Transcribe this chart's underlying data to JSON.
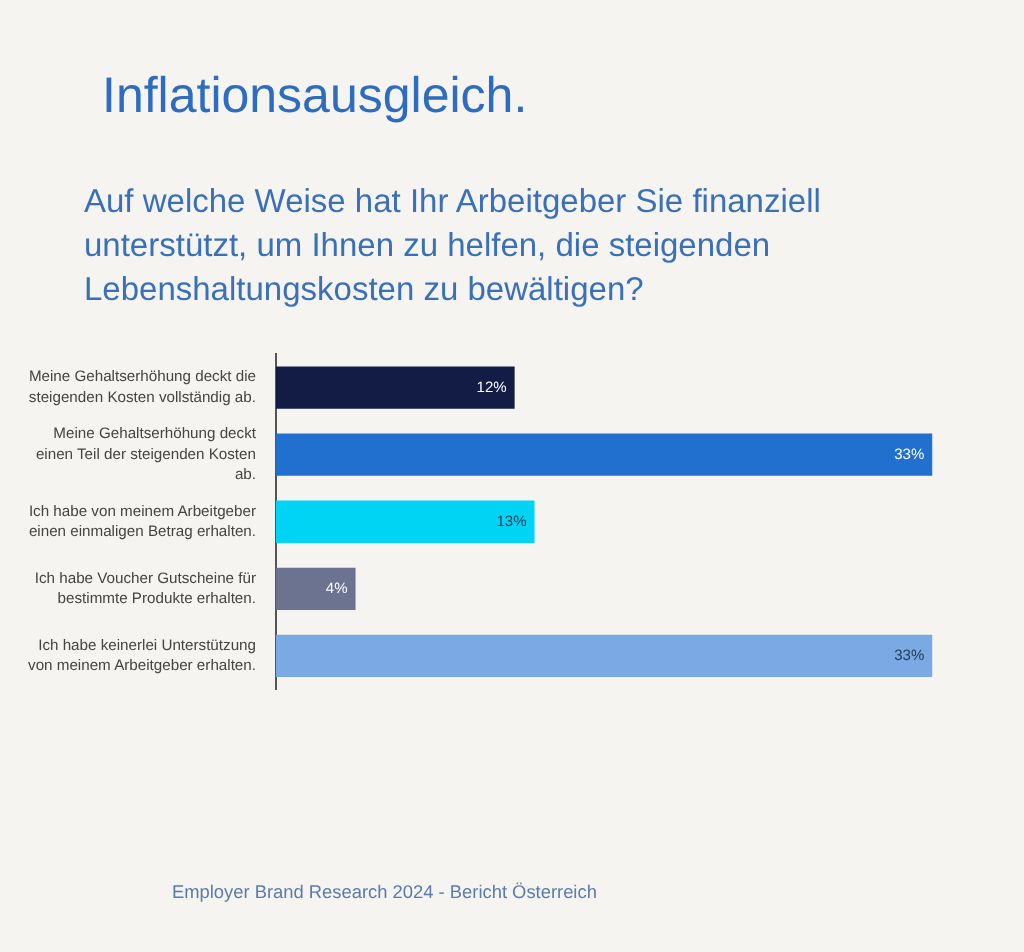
{
  "chart_data": {
    "type": "bar",
    "orientation": "horizontal",
    "title": "Inflationsausgleich.",
    "subtitle": "Auf welche Weise hat Ihr Arbeitgeber Sie finanziell unterstützt, um Ihnen zu helfen, die steigenden Lebenshaltungskosten zu bewältigen?",
    "categories": [
      "Meine Gehaltserhöhung deckt die steigenden Kosten vollständig ab.",
      "Meine Gehaltserhöhung deckt einen Teil der steigenden Kosten ab.",
      "Ich habe von meinem Arbeitgeber einen einmaligen Betrag erhalten.",
      "Ich habe Voucher Gutscheine für bestimmte Produkte erhalten.",
      "Ich habe keinerlei Unterstützung von meinem Arbeitgeber erhalten."
    ],
    "values": [
      12,
      33,
      13,
      4,
      33
    ],
    "colors": [
      "#121c45",
      "#2170d0",
      "#00d4f5",
      "#6c7390",
      "#7aa9e3"
    ],
    "value_labels": [
      "12%",
      "33%",
      "13%",
      "4%",
      "33%"
    ],
    "tick_labels": "y",
    "grid": false,
    "annotations": [
      "Employer Brand Research 2024 - Bericht Österreich"
    ]
  }
}
